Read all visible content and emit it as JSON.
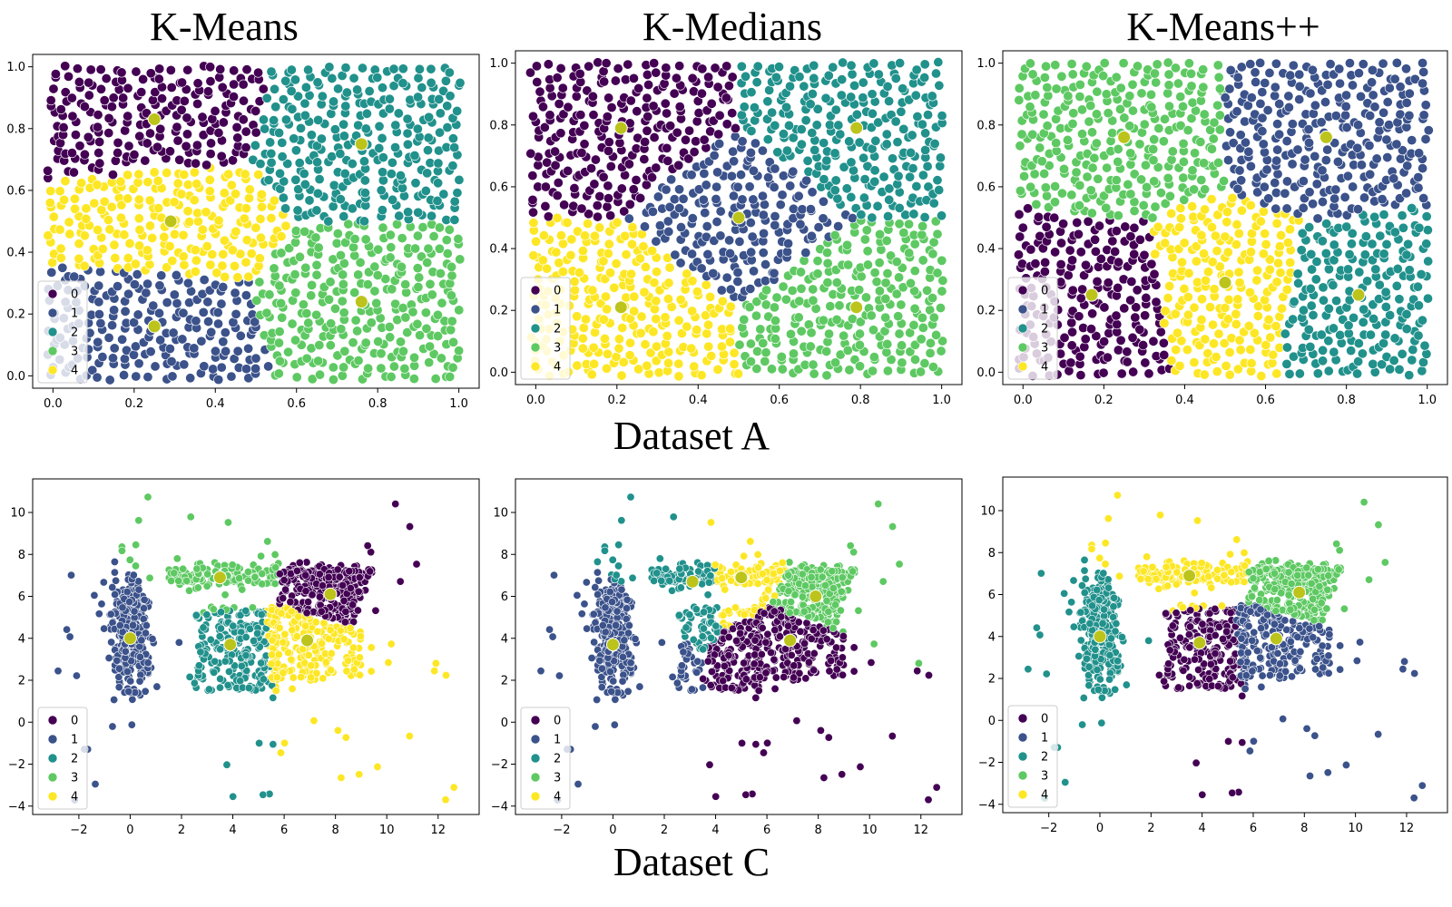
{
  "colors": {
    "palette": [
      "#440154",
      "#3b528b",
      "#21918c",
      "#5ec962",
      "#fde725"
    ],
    "centroid": "#bcc41c"
  },
  "column_titles": [
    "K-Means",
    "K-Medians",
    "K-Means++"
  ],
  "row_labels": [
    "Dataset A",
    "Dataset C"
  ],
  "legend_labels": [
    "0",
    "1",
    "2",
    "3",
    "4"
  ],
  "row_axes": [
    {
      "xlim": [
        -0.05,
        1.05
      ],
      "ylim": [
        -0.04,
        1.04
      ],
      "xticks": [
        0.0,
        0.2,
        0.4,
        0.6,
        0.8,
        1.0
      ],
      "yticks": [
        0.0,
        0.2,
        0.4,
        0.6,
        0.8,
        1.0
      ],
      "xtick_labels": [
        "0.0",
        "0.2",
        "0.4",
        "0.6",
        "0.8",
        "1.0"
      ],
      "ytick_labels": [
        "0.0",
        "0.2",
        "0.4",
        "0.6",
        "0.8",
        "1.0"
      ]
    },
    {
      "xlim": [
        -3.8,
        13.6
      ],
      "ylim": [
        -4.4,
        11.6
      ],
      "xticks": [
        -2,
        0,
        2,
        4,
        6,
        8,
        10,
        12
      ],
      "yticks": [
        -4,
        -2,
        0,
        2,
        4,
        6,
        8,
        10
      ],
      "xtick_labels": [
        "−2",
        "0",
        "2",
        "4",
        "6",
        "8",
        "10",
        "12"
      ],
      "ytick_labels": [
        "−4",
        "−2",
        "0",
        "2",
        "4",
        "6",
        "8",
        "10"
      ]
    }
  ],
  "chart_data": [
    {
      "type": "scatter",
      "title": "K-Means",
      "dataset": "Dataset A",
      "ylim": [
        0,
        1
      ],
      "legend": "lower-left",
      "centroids": [
        {
          "cluster": 0,
          "x": 0.25,
          "y": 0.83
        },
        {
          "cluster": 1,
          "x": 0.25,
          "y": 0.16
        },
        {
          "cluster": 2,
          "x": 0.76,
          "y": 0.75
        },
        {
          "cluster": 3,
          "x": 0.76,
          "y": 0.24
        },
        {
          "cluster": 4,
          "x": 0.29,
          "y": 0.5
        }
      ]
    },
    {
      "type": "scatter",
      "title": "K-Medians",
      "dataset": "Dataset A",
      "ylim": [
        0,
        1
      ],
      "legend": "lower-left",
      "centroids": [
        {
          "cluster": 0,
          "x": 0.21,
          "y": 0.79
        },
        {
          "cluster": 1,
          "x": 0.5,
          "y": 0.5
        },
        {
          "cluster": 2,
          "x": 0.79,
          "y": 0.79
        },
        {
          "cluster": 3,
          "x": 0.79,
          "y": 0.21
        },
        {
          "cluster": 4,
          "x": 0.21,
          "y": 0.21
        }
      ]
    },
    {
      "type": "scatter",
      "title": "K-Means++",
      "dataset": "Dataset A",
      "ylim": [
        0,
        1
      ],
      "legend": "lower-left",
      "centroids": [
        {
          "cluster": 0,
          "x": 0.17,
          "y": 0.25
        },
        {
          "cluster": 1,
          "x": 0.75,
          "y": 0.76
        },
        {
          "cluster": 2,
          "x": 0.83,
          "y": 0.25
        },
        {
          "cluster": 3,
          "x": 0.25,
          "y": 0.76
        },
        {
          "cluster": 4,
          "x": 0.5,
          "y": 0.29
        }
      ]
    },
    {
      "type": "scatter",
      "title": "K-Means",
      "dataset": "Dataset C",
      "ylim": [
        -4,
        11
      ],
      "legend": "lower-left",
      "centroids": [
        {
          "cluster": 0,
          "x": 7.8,
          "y": 6.1
        },
        {
          "cluster": 1,
          "x": 0.0,
          "y": 4.0
        },
        {
          "cluster": 2,
          "x": 3.9,
          "y": 3.7
        },
        {
          "cluster": 3,
          "x": 3.5,
          "y": 6.9
        },
        {
          "cluster": 4,
          "x": 6.9,
          "y": 3.9
        }
      ]
    },
    {
      "type": "scatter",
      "title": "K-Medians",
      "dataset": "Dataset C",
      "ylim": [
        -4,
        11
      ],
      "legend": "lower-left",
      "centroids": [
        {
          "cluster": 0,
          "x": 6.9,
          "y": 3.9
        },
        {
          "cluster": 1,
          "x": 0.0,
          "y": 3.7
        },
        {
          "cluster": 2,
          "x": 3.1,
          "y": 6.7
        },
        {
          "cluster": 3,
          "x": 7.9,
          "y": 6.0
        },
        {
          "cluster": 4,
          "x": 5.0,
          "y": 6.9
        }
      ]
    },
    {
      "type": "scatter",
      "title": "K-Means++",
      "dataset": "Dataset C",
      "ylim": [
        -4,
        11
      ],
      "legend": "lower-left",
      "centroids": [
        {
          "cluster": 0,
          "x": 3.9,
          "y": 3.7
        },
        {
          "cluster": 1,
          "x": 6.9,
          "y": 3.9
        },
        {
          "cluster": 2,
          "x": 0.0,
          "y": 4.0
        },
        {
          "cluster": 3,
          "x": 7.8,
          "y": 6.1
        },
        {
          "cluster": 4,
          "x": 3.5,
          "y": 6.9
        }
      ]
    }
  ]
}
